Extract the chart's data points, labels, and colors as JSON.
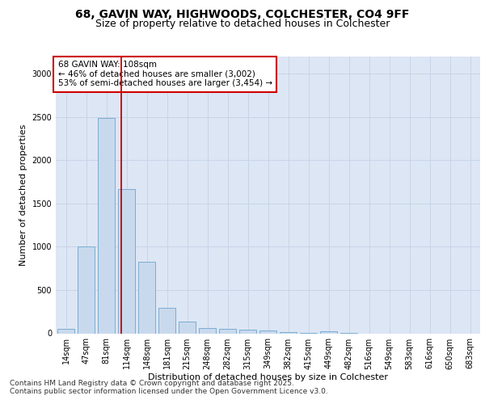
{
  "title_line1": "68, GAVIN WAY, HIGHWOODS, COLCHESTER, CO4 9FF",
  "title_line2": "Size of property relative to detached houses in Colchester",
  "xlabel": "Distribution of detached houses by size in Colchester",
  "ylabel": "Number of detached properties",
  "categories": [
    "14sqm",
    "47sqm",
    "81sqm",
    "114sqm",
    "148sqm",
    "181sqm",
    "215sqm",
    "248sqm",
    "282sqm",
    "315sqm",
    "349sqm",
    "382sqm",
    "415sqm",
    "449sqm",
    "482sqm",
    "516sqm",
    "549sqm",
    "583sqm",
    "616sqm",
    "650sqm",
    "683sqm"
  ],
  "values": [
    50,
    1005,
    2490,
    1670,
    830,
    290,
    140,
    62,
    55,
    40,
    30,
    12,
    3,
    20,
    3,
    0,
    0,
    0,
    0,
    0,
    0
  ],
  "bar_color": "#c9d9ed",
  "bar_edge_color": "#7aadd4",
  "bar_width": 0.85,
  "vline_x": 2.72,
  "vline_color": "#cc0000",
  "annotation_text": "68 GAVIN WAY: 108sqm\n← 46% of detached houses are smaller (3,002)\n53% of semi-detached houses are larger (3,454) →",
  "annotation_box_color": "#ffffff",
  "annotation_box_edge_color": "#cc0000",
  "ylim": [
    0,
    3200
  ],
  "yticks": [
    0,
    500,
    1000,
    1500,
    2000,
    2500,
    3000
  ],
  "grid_color": "#c8d4e8",
  "background_color": "#dde6f4",
  "footer_line1": "Contains HM Land Registry data © Crown copyright and database right 2025.",
  "footer_line2": "Contains public sector information licensed under the Open Government Licence v3.0.",
  "title_fontsize": 10,
  "subtitle_fontsize": 9,
  "axis_label_fontsize": 8,
  "tick_fontsize": 7,
  "annotation_fontsize": 7.5,
  "footer_fontsize": 6.5
}
